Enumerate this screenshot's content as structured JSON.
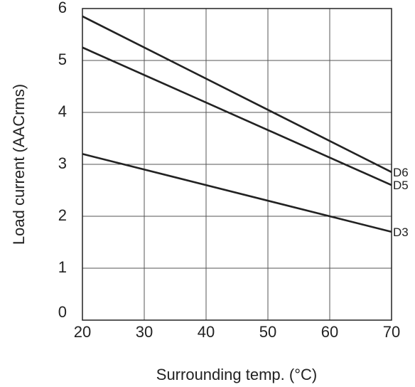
{
  "chart_data": {
    "type": "line",
    "title": "",
    "xlabel": "Surrounding temp. (°C)",
    "ylabel": "Load current (AACrms)",
    "xlim": [
      20,
      70
    ],
    "ylim": [
      0,
      6
    ],
    "xticks": [
      20,
      30,
      40,
      50,
      60,
      70
    ],
    "yticks": [
      0,
      1,
      2,
      3,
      4,
      5,
      6
    ],
    "grid": true,
    "legend": "none",
    "series": [
      {
        "name": "D6",
        "x": [
          20,
          70
        ],
        "y": [
          5.85,
          2.85
        ]
      },
      {
        "name": "D5",
        "x": [
          20,
          70
        ],
        "y": [
          5.25,
          2.6
        ]
      },
      {
        "name": "D3",
        "x": [
          20,
          70
        ],
        "y": [
          3.2,
          1.7
        ]
      }
    ],
    "colors": {
      "line": "#222222",
      "grid": "#555555",
      "frame": "#222222"
    }
  }
}
